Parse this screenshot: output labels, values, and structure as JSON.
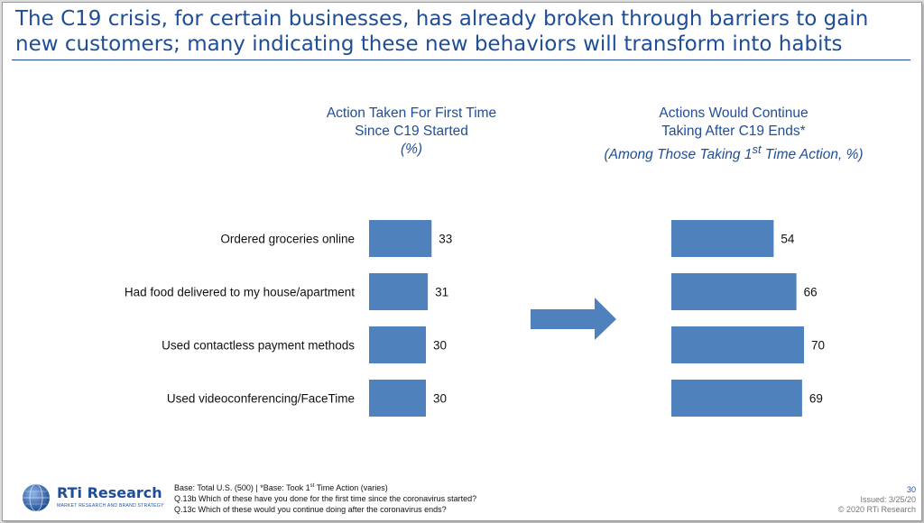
{
  "title": "The C19 crisis, for certain businesses, has already broken through barriers to gain new customers; many indicating these new behaviors will transform into habits",
  "colors": {
    "accent": "#1f4e97",
    "bar": "#4f81bd",
    "arrow": "#4f81bd"
  },
  "chart_data": [
    {
      "type": "bar",
      "orientation": "horizontal",
      "title_lines": [
        "Action Taken For First Time",
        "Since C19 Started",
        "(%)"
      ],
      "categories": [
        "Ordered groceries online",
        "Had food delivered to my house/apartment",
        "Used contactless payment methods",
        "Used videoconferencing/FaceTime"
      ],
      "values": [
        33,
        31,
        30,
        30
      ],
      "data_labels": [
        "33",
        "31",
        "30",
        "30"
      ],
      "xlim": [
        0,
        100
      ],
      "grid": false
    },
    {
      "type": "bar",
      "orientation": "horizontal",
      "title_lines": [
        "Actions Would Continue",
        "Taking After C19 Ends*"
      ],
      "subtitle_parts": [
        "(Among Those Taking 1",
        "st",
        " Time Action, %)"
      ],
      "categories": [
        "Ordered groceries online",
        "Had food delivered to my house/apartment",
        "Used contactless payment methods",
        "Used videoconferencing/FaceTime"
      ],
      "values": [
        54,
        66,
        70,
        69
      ],
      "data_labels": [
        "54",
        "66",
        "70",
        "69"
      ],
      "xlim": [
        0,
        100
      ],
      "grid": false
    }
  ],
  "footer": {
    "logo_text": "RTi Research",
    "logo_tagline": "MARKET RESEARCH AND BRAND STRATEGY",
    "notes": {
      "base_a": "Base: Total U.S. (500) | *Base: Took 1",
      "base_sup": "st",
      "base_b": " Time Action (varies)",
      "q13b": "Q.13b Which of these have you done for the first time since the coronavirus started?",
      "q13c": "Q.13c Which of these would you continue doing after the coronavirus ends?"
    },
    "page_number": "30",
    "issued": "Issued: 3/25/20",
    "copyright": "© 2020 RTi Research"
  }
}
